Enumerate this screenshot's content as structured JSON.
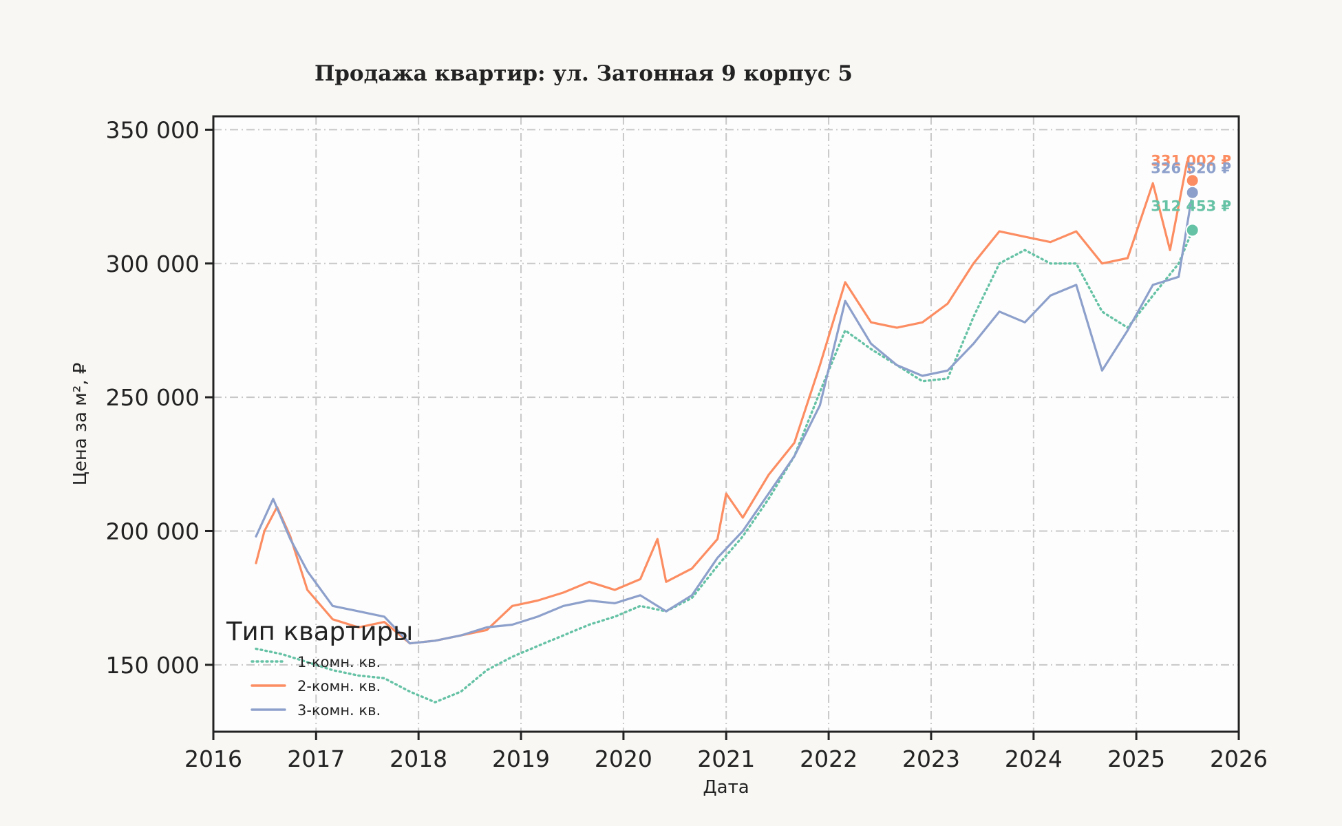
{
  "chart_data": {
    "type": "line",
    "title": "Продажа квартир: ул. Затонная 9 корпус 5",
    "xlabel": "Дата",
    "ylabel": "Цена за м², ₽",
    "xlim": [
      "2016-01-01",
      "2026-01-01"
    ],
    "ylim": [
      125000,
      355000
    ],
    "x_ticks": [
      "2016",
      "2017",
      "2018",
      "2019",
      "2020",
      "2021",
      "2022",
      "2023",
      "2024",
      "2025",
      "2026"
    ],
    "y_ticks": [
      150000,
      200000,
      250000,
      300000,
      350000
    ],
    "y_tick_labels": [
      "150 000",
      "200 000",
      "250 000",
      "300 000",
      "350 000"
    ],
    "grid": true,
    "legend": {
      "title": "Тип квартиры",
      "placement": "lower-left"
    },
    "series": [
      {
        "name": "1-комн. кв.",
        "color": "#66c2a5",
        "style": "dotted",
        "points": [
          [
            "2016-06-01",
            156000
          ],
          [
            "2016-09-01",
            154000
          ],
          [
            "2016-12-01",
            151000
          ],
          [
            "2017-03-01",
            148000
          ],
          [
            "2017-06-01",
            146000
          ],
          [
            "2017-09-01",
            145000
          ],
          [
            "2017-12-01",
            140000
          ],
          [
            "2018-03-01",
            136000
          ],
          [
            "2018-06-01",
            140000
          ],
          [
            "2018-09-01",
            148000
          ],
          [
            "2018-12-01",
            153000
          ],
          [
            "2019-03-01",
            157000
          ],
          [
            "2019-06-01",
            161000
          ],
          [
            "2019-09-01",
            165000
          ],
          [
            "2019-12-01",
            168000
          ],
          [
            "2020-03-01",
            172000
          ],
          [
            "2020-06-01",
            170000
          ],
          [
            "2020-09-01",
            175000
          ],
          [
            "2020-12-01",
            187000
          ],
          [
            "2021-03-01",
            198000
          ],
          [
            "2021-06-01",
            212000
          ],
          [
            "2021-09-01",
            228000
          ],
          [
            "2021-12-01",
            252000
          ],
          [
            "2022-03-01",
            275000
          ],
          [
            "2022-06-01",
            268000
          ],
          [
            "2022-09-01",
            262000
          ],
          [
            "2022-12-01",
            256000
          ],
          [
            "2023-03-01",
            257000
          ],
          [
            "2023-06-01",
            280000
          ],
          [
            "2023-09-01",
            300000
          ],
          [
            "2023-12-01",
            305000
          ],
          [
            "2024-03-01",
            300000
          ],
          [
            "2024-06-01",
            300000
          ],
          [
            "2024-09-01",
            282000
          ],
          [
            "2024-12-01",
            276000
          ],
          [
            "2025-03-01",
            288000
          ],
          [
            "2025-06-01",
            300000
          ],
          [
            "2025-07-20",
            312453
          ]
        ],
        "last_value_label": "312 453 ₽"
      },
      {
        "name": "2-комн. кв.",
        "color": "#fc8d62",
        "style": "solid",
        "points": [
          [
            "2016-06-01",
            188000
          ],
          [
            "2016-07-01",
            200000
          ],
          [
            "2016-08-15",
            209000
          ],
          [
            "2016-10-01",
            198000
          ],
          [
            "2016-12-01",
            178000
          ],
          [
            "2017-03-01",
            167000
          ],
          [
            "2017-06-01",
            164000
          ],
          [
            "2017-09-01",
            166000
          ],
          [
            "2017-12-01",
            158000
          ],
          [
            "2018-03-01",
            159000
          ],
          [
            "2018-06-01",
            161000
          ],
          [
            "2018-09-01",
            163000
          ],
          [
            "2018-12-01",
            172000
          ],
          [
            "2019-03-01",
            174000
          ],
          [
            "2019-06-01",
            177000
          ],
          [
            "2019-09-01",
            181000
          ],
          [
            "2019-12-01",
            178000
          ],
          [
            "2020-03-01",
            182000
          ],
          [
            "2020-05-01",
            197000
          ],
          [
            "2020-06-01",
            181000
          ],
          [
            "2020-09-01",
            186000
          ],
          [
            "2020-12-01",
            197000
          ],
          [
            "2021-01-01",
            214000
          ],
          [
            "2021-03-01",
            205000
          ],
          [
            "2021-06-01",
            221000
          ],
          [
            "2021-09-01",
            233000
          ],
          [
            "2021-12-01",
            262000
          ],
          [
            "2022-03-01",
            293000
          ],
          [
            "2022-06-01",
            278000
          ],
          [
            "2022-09-01",
            276000
          ],
          [
            "2022-12-01",
            278000
          ],
          [
            "2023-03-01",
            285000
          ],
          [
            "2023-06-01",
            300000
          ],
          [
            "2023-09-01",
            312000
          ],
          [
            "2023-12-01",
            310000
          ],
          [
            "2024-03-01",
            308000
          ],
          [
            "2024-06-01",
            312000
          ],
          [
            "2024-09-01",
            300000
          ],
          [
            "2024-12-01",
            302000
          ],
          [
            "2025-03-01",
            330000
          ],
          [
            "2025-05-01",
            305000
          ],
          [
            "2025-07-01",
            338000
          ],
          [
            "2025-07-20",
            331002
          ]
        ],
        "last_value_label": "331 002 ₽"
      },
      {
        "name": "3-комн. кв.",
        "color": "#8da0cb",
        "style": "solid",
        "points": [
          [
            "2016-06-01",
            198000
          ],
          [
            "2016-08-01",
            212000
          ],
          [
            "2016-10-01",
            197000
          ],
          [
            "2016-12-01",
            185000
          ],
          [
            "2017-03-01",
            172000
          ],
          [
            "2017-06-01",
            170000
          ],
          [
            "2017-09-01",
            168000
          ],
          [
            "2017-12-01",
            158000
          ],
          [
            "2018-03-01",
            159000
          ],
          [
            "2018-06-01",
            161000
          ],
          [
            "2018-09-01",
            164000
          ],
          [
            "2018-12-01",
            165000
          ],
          [
            "2019-03-01",
            168000
          ],
          [
            "2019-06-01",
            172000
          ],
          [
            "2019-09-01",
            174000
          ],
          [
            "2019-12-01",
            173000
          ],
          [
            "2020-03-01",
            176000
          ],
          [
            "2020-06-01",
            170000
          ],
          [
            "2020-09-01",
            176000
          ],
          [
            "2020-12-01",
            190000
          ],
          [
            "2021-03-01",
            200000
          ],
          [
            "2021-06-01",
            214000
          ],
          [
            "2021-09-01",
            228000
          ],
          [
            "2021-12-01",
            247000
          ],
          [
            "2022-03-01",
            286000
          ],
          [
            "2022-06-01",
            270000
          ],
          [
            "2022-09-01",
            262000
          ],
          [
            "2022-12-01",
            258000
          ],
          [
            "2023-03-01",
            260000
          ],
          [
            "2023-06-01",
            270000
          ],
          [
            "2023-09-01",
            282000
          ],
          [
            "2023-12-01",
            278000
          ],
          [
            "2024-03-01",
            288000
          ],
          [
            "2024-06-01",
            292000
          ],
          [
            "2024-09-01",
            260000
          ],
          [
            "2024-12-01",
            275000
          ],
          [
            "2025-03-01",
            292000
          ],
          [
            "2025-06-01",
            295000
          ],
          [
            "2025-07-20",
            326520
          ]
        ],
        "last_value_label": "326 520 ₽"
      }
    ]
  }
}
